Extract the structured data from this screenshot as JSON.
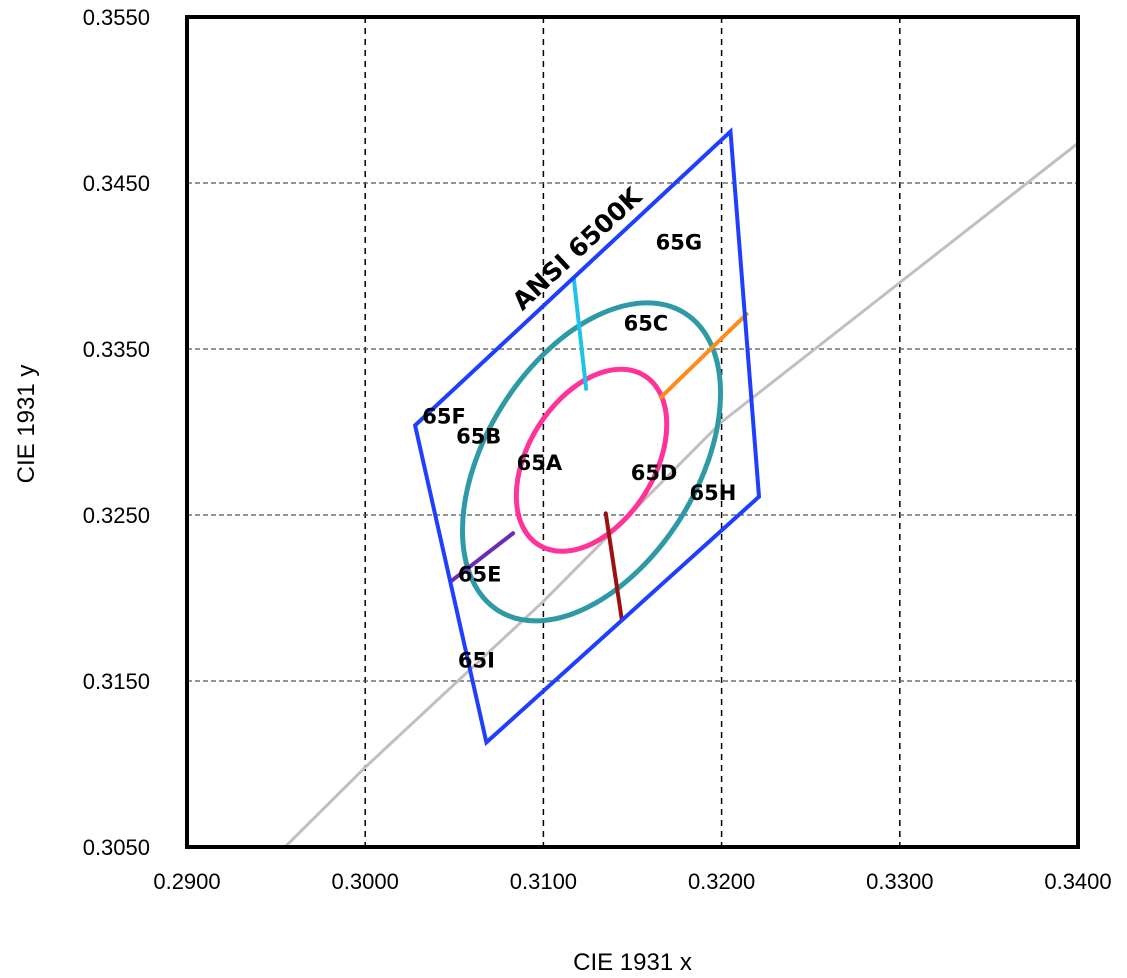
{
  "chart_data": {
    "type": "scatter",
    "title": "",
    "xlabel": "CIE 1931 x",
    "ylabel": "CIE 1931 y",
    "xlim": [
      0.29,
      0.34
    ],
    "ylim": [
      0.305,
      0.355
    ],
    "grid": true,
    "x_ticks": [
      "0.2900",
      "0.3000",
      "0.3100",
      "0.3200",
      "0.3300",
      "0.3400"
    ],
    "y_ticks": [
      "0.3050",
      "0.3150",
      "0.3250",
      "0.3350",
      "0.3450",
      "0.3550"
    ],
    "x_tick_values": [
      0.29,
      0.3,
      0.31,
      0.32,
      0.33,
      0.34
    ],
    "y_tick_values": [
      0.305,
      0.315,
      0.325,
      0.335,
      0.345,
      0.355
    ],
    "quadrangle": {
      "label": "ANSI 6500K",
      "color": "#1f3fff",
      "points": [
        [
          0.3028,
          0.3304
        ],
        [
          0.3205,
          0.3481
        ],
        [
          0.3221,
          0.3261
        ],
        [
          0.3068,
          0.3113
        ]
      ]
    },
    "planckian_locus": {
      "color": "#c0c0c0",
      "points": [
        [
          0.2955,
          0.305
        ],
        [
          0.3,
          0.3098
        ],
        [
          0.31,
          0.3198
        ],
        [
          0.32,
          0.3306
        ],
        [
          0.33,
          0.339
        ],
        [
          0.34,
          0.3474
        ]
      ]
    },
    "ellipses": [
      {
        "name": "outer",
        "color": "#2e9aa6",
        "cx": 0.3127,
        "cy": 0.3282,
        "rx": 0.00985,
        "ry": 0.00635,
        "angle_deg": 58
      },
      {
        "name": "inner",
        "color": "#ff3399",
        "cx": 0.3127,
        "cy": 0.3283,
        "rx": 0.0056,
        "ry": 0.0038,
        "angle_deg": 58
      }
    ],
    "segments": [
      {
        "name": "cyan",
        "color": "#1ec4e8",
        "points": [
          [
            0.3117,
            0.3393
          ],
          [
            0.3124,
            0.3326
          ]
        ]
      },
      {
        "name": "orange",
        "color": "#ff8c1a",
        "points": [
          [
            0.3166,
            0.3321
          ],
          [
            0.3214,
            0.3371
          ]
        ]
      },
      {
        "name": "dark-red",
        "color": "#9b1010",
        "points": [
          [
            0.3135,
            0.3251
          ],
          [
            0.3144,
            0.3187
          ]
        ]
      },
      {
        "name": "purple",
        "color": "#6a2cb5",
        "points": [
          [
            0.3048,
            0.321
          ],
          [
            0.3083,
            0.3239
          ]
        ]
      }
    ],
    "annotations": [
      {
        "text": "65A",
        "x": 0.3085,
        "y": 0.3277
      },
      {
        "text": "65B",
        "x": 0.3051,
        "y": 0.3293
      },
      {
        "text": "65C",
        "x": 0.3145,
        "y": 0.3361
      },
      {
        "text": "65D",
        "x": 0.3149,
        "y": 0.3271
      },
      {
        "text": "65E",
        "x": 0.3052,
        "y": 0.321
      },
      {
        "text": "65F",
        "x": 0.3032,
        "y": 0.3305
      },
      {
        "text": "65G",
        "x": 0.3163,
        "y": 0.341
      },
      {
        "text": "65H",
        "x": 0.3182,
        "y": 0.3259
      },
      {
        "text": "65I",
        "x": 0.3052,
        "y": 0.3158
      }
    ]
  }
}
